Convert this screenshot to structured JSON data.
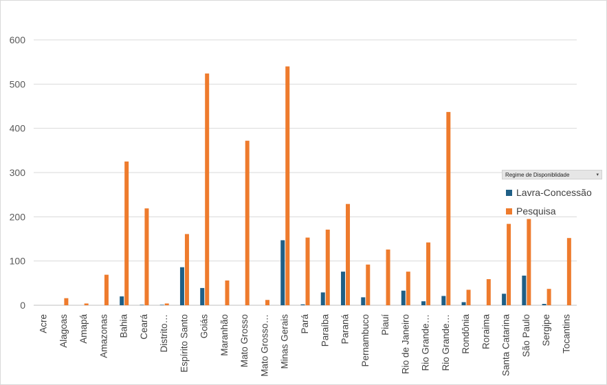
{
  "legend": {
    "filter_label": "Regime de Disponiblidade",
    "filter_arrow": "▾"
  },
  "colors": {
    "lavra": "#1f5f86",
    "pesquisa": "#ee7b2d"
  },
  "chart_data": {
    "type": "bar",
    "title": "",
    "xlabel": "",
    "ylabel": "",
    "ylim": [
      0,
      600
    ],
    "yticks": [
      0,
      100,
      200,
      300,
      400,
      500,
      600
    ],
    "grid": true,
    "legend_position": "right",
    "categories": [
      "Acre",
      "Alagoas",
      "Amapá",
      "Amazonas",
      "Bahia",
      "Ceará",
      "Distrito…",
      "Espírito Santo",
      "Goiás",
      "Maranhão",
      "Mato Grosso",
      "Mato Grosso…",
      "Minas Gerais",
      "Pará",
      "Paraíba",
      "Paraná",
      "Pernambuco",
      "Piauí",
      "Rio de Janeiro",
      "Rio Grande…",
      "Rio Grande…",
      "Rondônia",
      "Roraima",
      "Santa Catarina",
      "São Paulo",
      "Sergipe",
      "Tocantins"
    ],
    "series": [
      {
        "name": "Lavra-Concessão",
        "values": [
          0,
          0,
          0,
          0,
          20,
          1,
          1,
          86,
          39,
          0,
          0,
          0,
          147,
          2,
          29,
          76,
          18,
          0,
          33,
          9,
          21,
          7,
          0,
          26,
          67,
          3,
          0
        ]
      },
      {
        "name": "Pesquisa",
        "values": [
          0,
          16,
          4,
          69,
          325,
          219,
          4,
          161,
          524,
          56,
          372,
          12,
          540,
          153,
          171,
          229,
          92,
          126,
          76,
          142,
          437,
          35,
          59,
          184,
          195,
          37,
          152
        ]
      }
    ]
  }
}
